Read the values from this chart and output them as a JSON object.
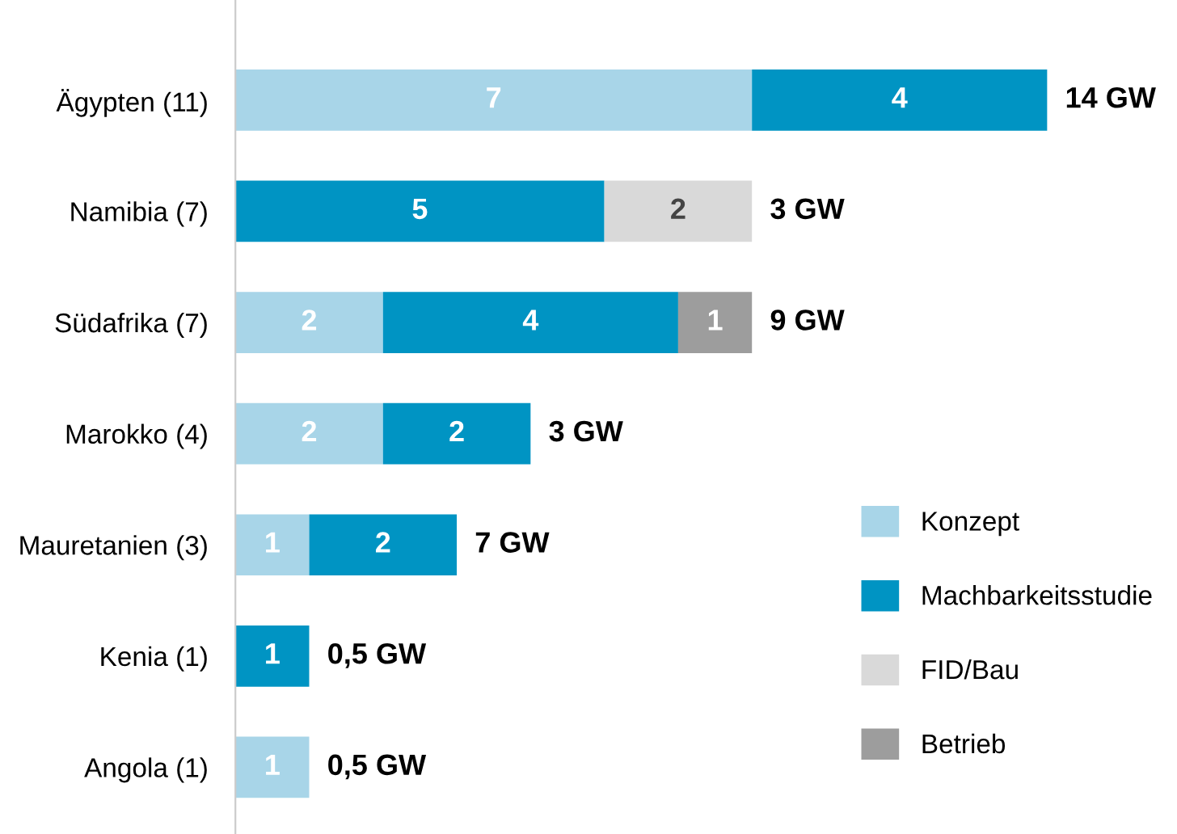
{
  "chart_data": {
    "type": "bar",
    "orientation": "horizontal",
    "stacked": true,
    "categories": [
      "Ägypten (11)",
      "Namibia (7)",
      "Südafrika (7)",
      "Marokko (4)",
      "Mauretanien (3)",
      "Kenia (1)",
      "Angola (1)"
    ],
    "series": [
      {
        "name": "Konzept",
        "color": "#a8d5e8",
        "values": [
          7,
          null,
          2,
          2,
          1,
          null,
          1
        ]
      },
      {
        "name": "Machbarkeitsstudie",
        "color": "#0094c3",
        "values": [
          4,
          5,
          4,
          2,
          2,
          1,
          null
        ]
      },
      {
        "name": "FID/Bau",
        "color": "#d9d9d9",
        "values": [
          null,
          2,
          null,
          null,
          null,
          null,
          null
        ]
      },
      {
        "name": "Betrieb",
        "color": "#9d9d9d",
        "values": [
          null,
          null,
          1,
          null,
          null,
          null,
          null
        ]
      }
    ],
    "annotations": [
      {
        "text": "14 GW",
        "x": 11,
        "y": "Ägypten (11)"
      },
      {
        "text": "3 GW",
        "x": 7,
        "y": "Namibia (7)"
      },
      {
        "text": "9 GW",
        "x": 7,
        "y": "Südafrika (7)"
      },
      {
        "text": "3 GW",
        "x": 4,
        "y": "Marokko (4)"
      },
      {
        "text": "7 GW",
        "x": 3,
        "y": "Mauretanien (3)"
      },
      {
        "text": "0,5 GW",
        "x": 1,
        "y": "Kenia (1)"
      },
      {
        "text": "0,5 GW",
        "x": 1,
        "y": "Angola (1)"
      }
    ],
    "data_labels": true,
    "legend": "bottom right",
    "grid": false
  }
}
